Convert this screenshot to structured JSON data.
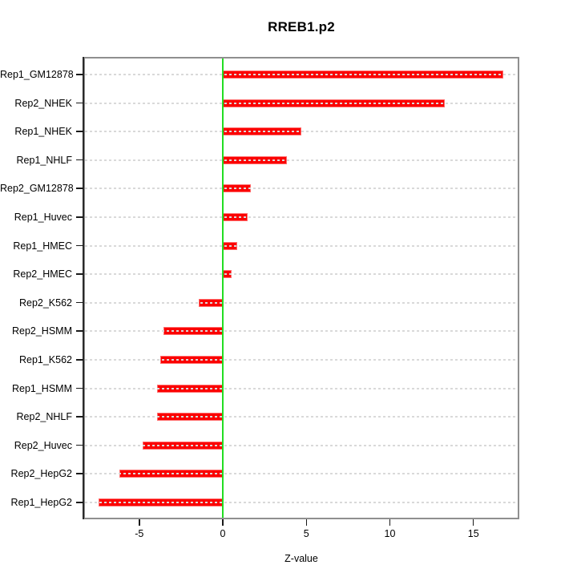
{
  "title": "RREB1.p2",
  "chart_data": {
    "type": "bar",
    "orientation": "horizontal",
    "title": "RREB1.p2",
    "xlabel": "Z-value",
    "ylabel": "",
    "categories": [
      "Rep1_GM12878",
      "Rep2_NHEK",
      "Rep1_NHEK",
      "Rep1_NHLF",
      "Rep2_GM12878",
      "Rep1_Huvec",
      "Rep1_HMEC",
      "Rep2_HMEC",
      "Rep2_K562",
      "Rep2_HSMM",
      "Rep1_K562",
      "Rep1_HSMM",
      "Rep2_NHLF",
      "Rep2_Huvec",
      "Rep2_HepG2",
      "Rep1_HepG2"
    ],
    "values": [
      16.79,
      13.29,
      4.68,
      3.85,
      1.66,
      1.5,
      0.84,
      0.52,
      -1.43,
      -3.54,
      -3.75,
      -3.91,
      -3.94,
      -4.8,
      -6.19,
      -7.43
    ],
    "xlim": [
      -8.25,
      17.65
    ],
    "x_ticks": [
      "-5",
      "0",
      "5",
      "10",
      "15"
    ],
    "x_tick_values": [
      -5,
      0,
      5,
      10,
      15
    ],
    "grid": true,
    "grid_style": "dashed",
    "legend": false,
    "bar_color": "#fb0000",
    "bar_edge_color": "#ff6b6b",
    "zero_line_color": "#22dd22",
    "grid_color": "#d9d9d9",
    "box_color": "#8f8f8f",
    "text_color": "#000000"
  }
}
